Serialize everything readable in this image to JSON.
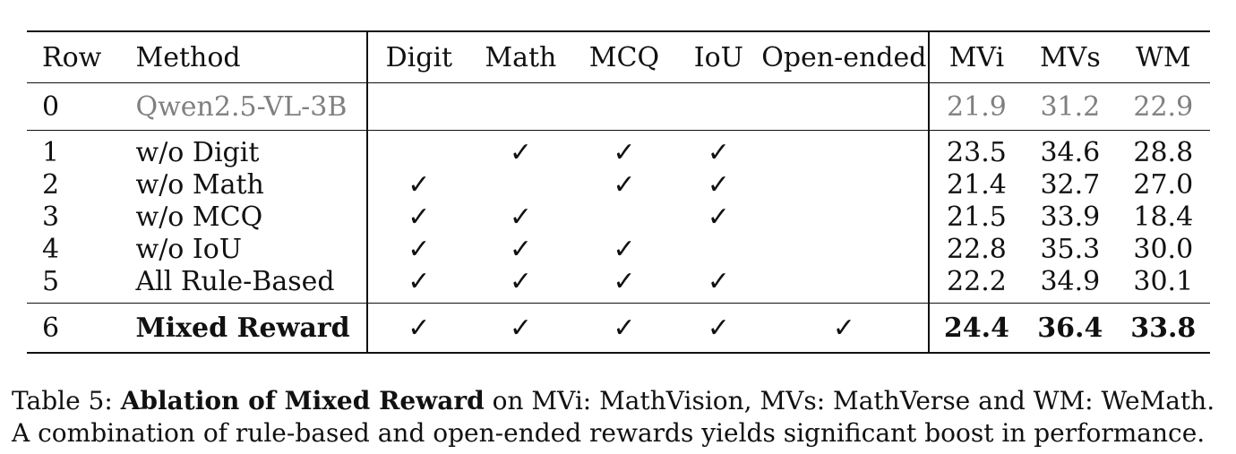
{
  "table": {
    "headers": {
      "row": "Row",
      "method": "Method",
      "digit": "Digit",
      "math": "Math",
      "mcq": "MCQ",
      "iou": "IoU",
      "open": "Open-ended",
      "mvi": "MVi",
      "mvs": "MVs",
      "wm": "WM"
    },
    "check_symbol": "✓",
    "baseline": {
      "row": "0",
      "method": "Qwen2.5-VL-3B",
      "mvi": "21.9",
      "mvs": "31.2",
      "wm": "22.9"
    },
    "rows": [
      {
        "row": "1",
        "method": "w/o Digit",
        "digit": "",
        "math": "✓",
        "mcq": "✓",
        "iou": "✓",
        "open": "",
        "mvi": "23.5",
        "mvs": "34.6",
        "wm": "28.8"
      },
      {
        "row": "2",
        "method": "w/o Math",
        "digit": "✓",
        "math": "",
        "mcq": "✓",
        "iou": "✓",
        "open": "",
        "mvi": "21.4",
        "mvs": "32.7",
        "wm": "27.0"
      },
      {
        "row": "3",
        "method": "w/o MCQ",
        "digit": "✓",
        "math": "✓",
        "mcq": "",
        "iou": "✓",
        "open": "",
        "mvi": "21.5",
        "mvs": "33.9",
        "wm": "18.4"
      },
      {
        "row": "4",
        "method": "w/o IoU",
        "digit": "✓",
        "math": "✓",
        "mcq": "✓",
        "iou": "",
        "open": "",
        "mvi": "22.8",
        "mvs": "35.3",
        "wm": "30.0"
      },
      {
        "row": "5",
        "method": "All Rule-Based",
        "digit": "✓",
        "math": "✓",
        "mcq": "✓",
        "iou": "✓",
        "open": "",
        "mvi": "22.2",
        "mvs": "34.9",
        "wm": "30.1"
      }
    ],
    "final": {
      "row": "6",
      "method": "Mixed Reward",
      "digit": "✓",
      "math": "✓",
      "mcq": "✓",
      "iou": "✓",
      "open": "✓",
      "mvi": "24.4",
      "mvs": "36.4",
      "wm": "33.8"
    }
  },
  "caption": {
    "label": "Table 5:",
    "bold_title": "Ablation of Mixed Reward",
    "text": "on MVi: MathVision, MVs: MathVerse and WM: WeMath. A combination of rule-based and open-ended rewards yields significant boost in performance."
  }
}
